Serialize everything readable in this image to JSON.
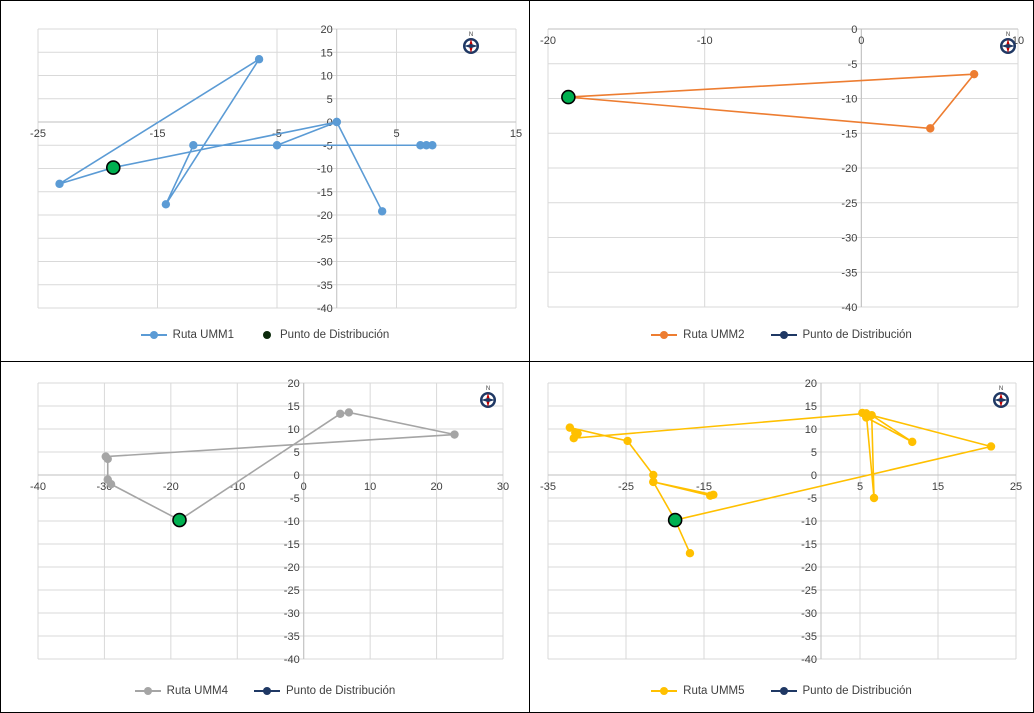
{
  "chart_data": [
    {
      "type": "scatter",
      "xlim": [
        -25,
        15
      ],
      "ylim": [
        -40,
        20
      ],
      "x_ticks": [
        -25,
        -15,
        -5,
        5,
        15
      ],
      "y_ticks": [
        20,
        15,
        10,
        5,
        0,
        -5,
        -10,
        -15,
        -20,
        -25,
        -30,
        -35,
        -40
      ],
      "grid": true,
      "legend_position": "bottom",
      "series": [
        {
          "name": "Ruta UMM1",
          "color": "#5B9BD5",
          "points": [
            [
              -18.7,
              -9.8
            ],
            [
              -23.2,
              -13.3
            ],
            [
              -6.5,
              13.5
            ],
            [
              -14.3,
              -17.7
            ],
            [
              -12,
              -5
            ],
            [
              7,
              -5
            ],
            [
              7.5,
              -5
            ],
            [
              8,
              -5
            ],
            [
              -5,
              -5
            ],
            [
              0,
              0
            ],
            [
              3.8,
              -19.2
            ],
            [
              0,
              0
            ],
            [
              -18.7,
              -9.8
            ]
          ]
        },
        {
          "name": "Punto de Distribución",
          "color": "#000000",
          "fill": "#00B050",
          "points": [
            [
              -18.7,
              -9.8
            ]
          ]
        }
      ]
    },
    {
      "type": "scatter",
      "xlim": [
        -20,
        10
      ],
      "ylim": [
        -40,
        0
      ],
      "x_ticks": [
        -20,
        -10,
        0,
        10
      ],
      "y_ticks": [
        0,
        -5,
        -10,
        -15,
        -20,
        -25,
        -30,
        -35,
        -40
      ],
      "grid": true,
      "legend_position": "bottom",
      "series": [
        {
          "name": "Ruta UMM2",
          "color": "#ED7D31",
          "points": [
            [
              -18.7,
              -9.8
            ],
            [
              7.2,
              -6.5
            ],
            [
              4.4,
              -14.3
            ],
            [
              -18.7,
              -9.8
            ]
          ]
        },
        {
          "name": "Punto de Distribución",
          "color": "#1F3864",
          "fill": "#00B050",
          "points": [
            [
              -18.7,
              -9.8
            ]
          ]
        }
      ]
    },
    {
      "type": "scatter",
      "xlim": [
        -40,
        30
      ],
      "ylim": [
        -40,
        20
      ],
      "x_ticks": [
        -40,
        -30,
        -20,
        -10,
        0,
        10,
        20,
        30
      ],
      "y_ticks": [
        20,
        15,
        10,
        5,
        0,
        -5,
        -10,
        -15,
        -20,
        -25,
        -30,
        -35,
        -40
      ],
      "grid": true,
      "legend_position": "bottom",
      "series": [
        {
          "name": "Ruta UMM4",
          "color": "#A5A5A5",
          "points": [
            [
              -18.7,
              -9.8
            ],
            [
              -29,
              -2
            ],
            [
              -29.5,
              -1
            ],
            [
              -29.5,
              3.5
            ],
            [
              -29.8,
              4
            ],
            [
              22.7,
              8.8
            ],
            [
              6.8,
              13.6
            ],
            [
              5.5,
              13.3
            ],
            [
              -18.7,
              -9.8
            ]
          ]
        },
        {
          "name": "Punto de Distribución",
          "color": "#1F3864",
          "fill": "#00B050",
          "points": [
            [
              -18.7,
              -9.8
            ]
          ]
        }
      ]
    },
    {
      "type": "scatter",
      "xlim": [
        -35,
        25
      ],
      "ylim": [
        -40,
        20
      ],
      "x_ticks": [
        -35,
        -25,
        -15,
        5,
        15,
        25
      ],
      "y_ticks": [
        20,
        15,
        10,
        5,
        0,
        -5,
        -10,
        -15,
        -20,
        -25,
        -30,
        -35,
        -40
      ],
      "grid": true,
      "legend_position": "bottom",
      "series": [
        {
          "name": "Ruta UMM5",
          "color": "#FFC000",
          "points": [
            [
              -18.7,
              -9.8
            ],
            [
              -16.8,
              -17
            ],
            [
              -18.7,
              -9.8
            ],
            [
              21.8,
              6.2
            ],
            [
              5.3,
              13.5
            ],
            [
              5.8,
              12.5
            ],
            [
              11.7,
              7.2
            ],
            [
              6.5,
              13
            ],
            [
              6.8,
              -5
            ],
            [
              5.8,
              13.4
            ],
            [
              -31.7,
              8
            ],
            [
              -31.2,
              9
            ],
            [
              -31.5,
              9.2
            ],
            [
              -32.2,
              10.3
            ],
            [
              -24.8,
              7.4
            ],
            [
              -21.5,
              0
            ],
            [
              -21.5,
              -1.5
            ],
            [
              -13.8,
              -4.3
            ],
            [
              -14.2,
              -4.5
            ],
            [
              -21.5,
              -1.5
            ],
            [
              -18.7,
              -9.8
            ]
          ]
        },
        {
          "name": "Punto de Distribución",
          "color": "#1F3864",
          "fill": "#00B050",
          "points": [
            [
              -18.7,
              -9.8
            ]
          ]
        }
      ]
    }
  ]
}
